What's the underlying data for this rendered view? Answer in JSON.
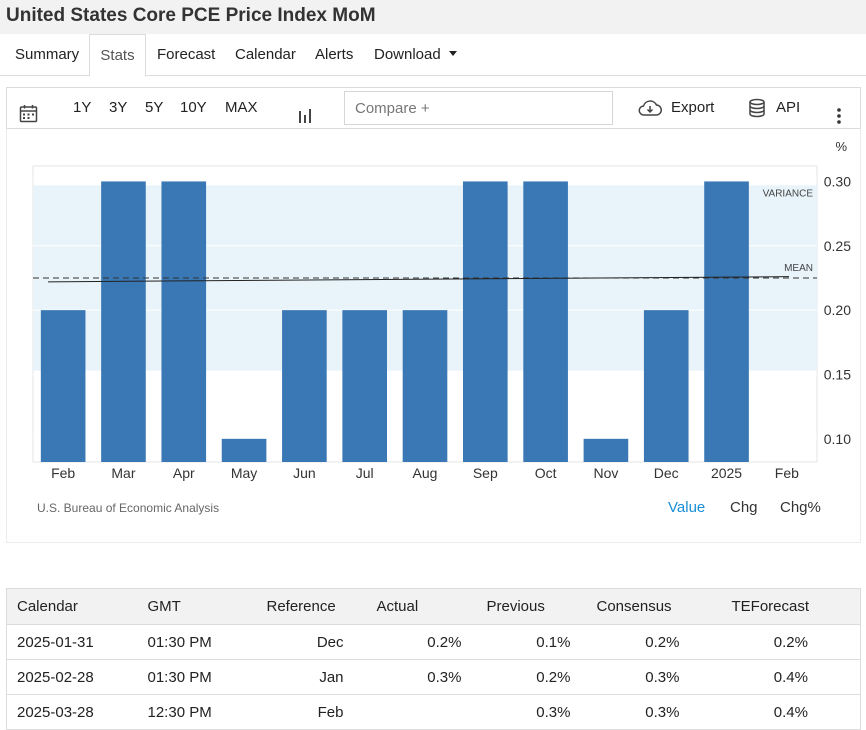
{
  "page": {
    "title": "United States Core PCE Price Index MoM"
  },
  "tabs": [
    {
      "label": "Summary"
    },
    {
      "label": "Stats"
    },
    {
      "label": "Forecast"
    },
    {
      "label": "Calendar"
    },
    {
      "label": "Alerts"
    },
    {
      "label": "Download"
    }
  ],
  "toolbar": {
    "calendar_icon": "calendar-icon",
    "ranges": [
      "1Y",
      "3Y",
      "5Y",
      "10Y",
      "MAX"
    ],
    "chart_type_icon": "bar-chart-icon",
    "compare_placeholder": "Compare +",
    "export_label": "Export",
    "export_icon": "cloud-download-icon",
    "api_label": "API",
    "api_icon": "database-icon",
    "more_icon": "vertical-dots-icon"
  },
  "chart_data": {
    "type": "bar",
    "unit": "%",
    "categories": [
      "Feb",
      "Mar",
      "Apr",
      "May",
      "Jun",
      "Jul",
      "Aug",
      "Sep",
      "Oct",
      "Nov",
      "Dec",
      "2025",
      "Feb"
    ],
    "values": [
      0.2,
      0.3,
      0.3,
      0.1,
      0.2,
      0.2,
      0.2,
      0.3,
      0.3,
      0.1,
      0.2,
      0.3,
      null
    ],
    "yticks": [
      0.1,
      0.15,
      0.2,
      0.25,
      0.3
    ],
    "ylim": [
      0.082,
      0.312
    ],
    "mean": 0.225,
    "mean_label": "MEAN",
    "variance_band": [
      0.153,
      0.297
    ],
    "variance_label": "VARIANCE",
    "trend": [
      0.222,
      0.226
    ],
    "colors": {
      "bar": "#3a78b5",
      "band": "#e8f4fa"
    },
    "source": "U.S. Bureau of Economic Analysis",
    "views": [
      "Value",
      "Chg",
      "Chg%"
    ],
    "active_view": "Value"
  },
  "calendar": {
    "headers": [
      "Calendar",
      "GMT",
      "Reference",
      "Actual",
      "Previous",
      "Consensus",
      "TEForecast"
    ],
    "rows": [
      [
        "2025-01-31",
        "01:30 PM",
        "Dec",
        "0.2%",
        "0.1%",
        "0.2%",
        "0.2%"
      ],
      [
        "2025-02-28",
        "01:30 PM",
        "Jan",
        "0.3%",
        "0.2%",
        "0.3%",
        "0.4%"
      ],
      [
        "2025-03-28",
        "12:30 PM",
        "Feb",
        "",
        "0.3%",
        "0.3%",
        "0.4%"
      ]
    ]
  }
}
